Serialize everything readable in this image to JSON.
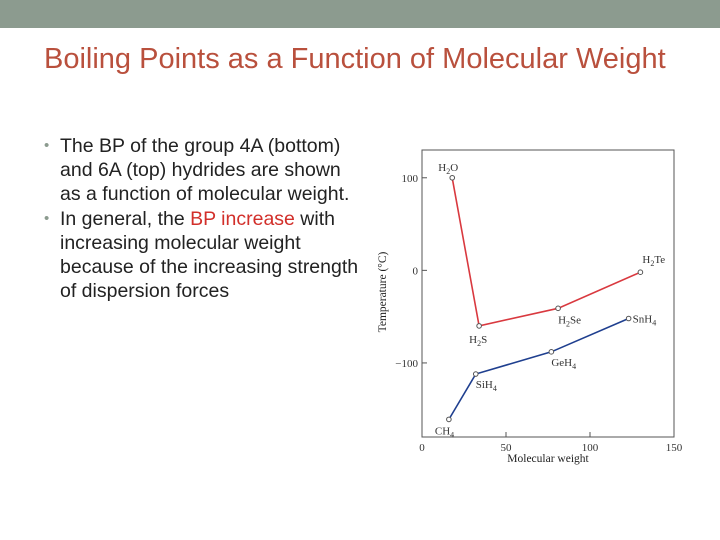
{
  "slide": {
    "title": "Boiling Points as a Function of Molecular Weight",
    "bullet1": "The BP of the group 4A (bottom) and 6A (top) hydrides are shown as a function of molecular weight.",
    "bullet2_a": "In general, the ",
    "bullet2_highlight": "BP increase",
    "bullet2_b": " with increasing molecular weight because of the increasing strength of dispersion forces",
    "bullet_glyph": "•"
  },
  "colors": {
    "title": "#b9503d",
    "band": "#8c9b8f",
    "highlight": "#d22f2a",
    "group6": "#d9393f",
    "group4": "#1f3f8f",
    "frame": "#555555"
  },
  "chart_data": {
    "type": "line",
    "xlabel": "Molecular weight",
    "ylabel": "Temperature (°C)",
    "xlim": [
      0,
      150
    ],
    "ylim": [
      -180,
      130
    ],
    "xticks": [
      0,
      50,
      100,
      150
    ],
    "yticks": [
      100,
      0,
      -100
    ],
    "ytick_labels": [
      "100",
      "0",
      "−100"
    ],
    "grid": false,
    "series": [
      {
        "color": "#d9393f",
        "points": [
          {
            "label": "H2O",
            "x": 18,
            "y": 100
          },
          {
            "label": "H2S",
            "x": 34,
            "y": -60
          },
          {
            "label": "H2Se",
            "x": 81,
            "y": -41
          },
          {
            "label": "H2Te",
            "x": 130,
            "y": -2
          }
        ]
      },
      {
        "color": "#1f3f8f",
        "points": [
          {
            "label": "CH4",
            "x": 16,
            "y": -161
          },
          {
            "label": "SiH4",
            "x": 32,
            "y": -112
          },
          {
            "label": "GeH4",
            "x": 77,
            "y": -88
          },
          {
            "label": "SnH4",
            "x": 123,
            "y": -52
          }
        ]
      }
    ]
  }
}
